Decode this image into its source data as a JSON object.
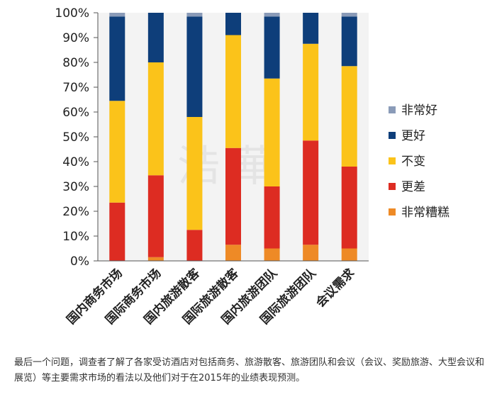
{
  "chart_data": {
    "type": "bar",
    "stacked": true,
    "categories": [
      "国内商务市场",
      "国际商务市场",
      "国内旅游散客",
      "国际旅游散客",
      "国内旅游团队",
      "国际旅游团队",
      "会议需求"
    ],
    "series": [
      {
        "name": "非常糟糕",
        "color": "#ee8a26",
        "values": [
          0,
          1.5,
          0,
          6.5,
          5,
          6.5,
          5
        ]
      },
      {
        "name": "更差",
        "color": "#dd2c22",
        "values": [
          23.5,
          33,
          12.5,
          39,
          25,
          42,
          33
        ]
      },
      {
        "name": "不变",
        "color": "#fbc31a",
        "values": [
          41,
          45.5,
          45.5,
          45.5,
          43.5,
          39,
          40.5
        ]
      },
      {
        "name": "更好",
        "color": "#0e3e7a",
        "values": [
          34,
          20,
          40.5,
          9,
          25,
          12.5,
          20
        ]
      },
      {
        "name": "非常好",
        "color": "#8a9bb8",
        "values": [
          1.5,
          0,
          1.5,
          0,
          1.5,
          0,
          1.5
        ]
      }
    ],
    "ylim": [
      0,
      100
    ],
    "yticks": [
      "0%",
      "10%",
      "20%",
      "30%",
      "40%",
      "50%",
      "60%",
      "70%",
      "80%",
      "90%",
      "100%"
    ],
    "legend": {
      "position": "right",
      "order": [
        "非常好",
        "更好",
        "不变",
        "更差",
        "非常糟糕"
      ]
    },
    "grid": false
  },
  "watermark": "浩 華",
  "caption": "最后一个问题，调查者了解了各家受访酒店对包括商务、旅游散客、旅游团队和会议（会议、奖励旅游、大型会议和展览）等主要需求市场的看法以及他们对于在2015年的业绩表现预测。"
}
